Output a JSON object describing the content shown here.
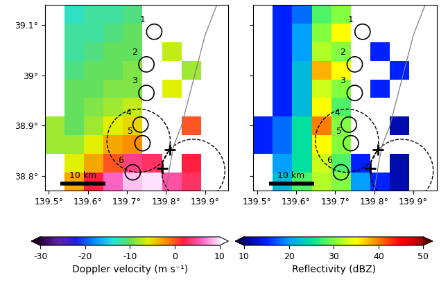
{
  "chart_data": [
    {
      "type": "heatmap",
      "xlim": [
        139.49,
        139.96
      ],
      "ylim": [
        38.77,
        39.14
      ],
      "xticks": [
        {
          "value": 139.5,
          "label": "139.5°"
        },
        {
          "value": 139.6,
          "label": "139.6°"
        },
        {
          "value": 139.7,
          "label": "139.7°"
        },
        {
          "value": 139.8,
          "label": "139.8°"
        },
        {
          "value": 139.9,
          "label": "139.9°"
        }
      ],
      "yticks": [
        {
          "value": 38.8,
          "label": "38.8°"
        },
        {
          "value": 38.9,
          "label": "38.9°"
        },
        {
          "value": 39.0,
          "label": "39°"
        },
        {
          "value": 39.1,
          "label": "39.1°"
        }
      ],
      "cells": {
        "x_edges": [
          139.49,
          139.54,
          139.59,
          139.64,
          139.69,
          139.74,
          139.79,
          139.84,
          139.89,
          139.96
        ],
        "y_edges": [
          38.77,
          38.807,
          38.844,
          38.881,
          38.918,
          38.955,
          38.992,
          39.029,
          39.066,
          39.103,
          39.14
        ],
        "values": [
          [
            null,
            -3,
            2,
            6,
            9,
            10,
            5,
            3,
            null
          ],
          [
            null,
            -6,
            -3,
            0,
            4,
            3,
            null,
            2,
            null
          ],
          [
            -8,
            -8,
            -6,
            -3,
            -2,
            null,
            null,
            null,
            null
          ],
          [
            -8,
            -10,
            -8,
            -6,
            -5,
            null,
            null,
            0,
            null
          ],
          [
            null,
            -10,
            -9,
            -8,
            -7,
            null,
            null,
            null,
            null
          ],
          [
            null,
            -10,
            -10,
            -9,
            -9,
            null,
            -6,
            null,
            null
          ],
          [
            null,
            -11,
            -10,
            -10,
            -9,
            null,
            null,
            -8,
            null
          ],
          [
            null,
            -12,
            -11,
            -10,
            -10,
            null,
            -7,
            null,
            null
          ],
          [
            null,
            -12,
            -12,
            -11,
            -10,
            null,
            null,
            null,
            null
          ],
          [
            null,
            -13,
            -12,
            -12,
            -11,
            null,
            null,
            null,
            null
          ]
        ]
      },
      "colorbar": {
        "label": "Doppler velocity (m s⁻¹)",
        "range": [
          -30,
          10
        ],
        "ticks": [
          -30,
          -20,
          -10,
          0,
          10
        ]
      },
      "circles": [
        {
          "label": "1",
          "lon": 139.77,
          "lat": 39.087
        },
        {
          "label": "2",
          "lon": 139.75,
          "lat": 39.022
        },
        {
          "label": "3",
          "lon": 139.75,
          "lat": 38.965
        },
        {
          "label": "4",
          "lon": 139.735,
          "lat": 38.902
        },
        {
          "label": "5",
          "lon": 139.74,
          "lat": 38.865
        },
        {
          "label": "6",
          "lon": 139.715,
          "lat": 38.807
        }
      ],
      "circle_radius_km": 1.7,
      "dashed_circles": [
        {
          "lon": 139.73,
          "lat": 38.87,
          "radius_km": 7
        },
        {
          "lon": 139.87,
          "lat": 38.81,
          "radius_km": 7
        }
      ],
      "crosses": [
        [
          139.81,
          38.852
        ],
        [
          139.79,
          38.815
        ]
      ],
      "scale_bar": {
        "label": "10 km",
        "length_km": 10,
        "lon": 139.53,
        "lat": 38.785
      },
      "coastline": [
        [
          139.93,
          39.14
        ],
        [
          139.9,
          39.08
        ],
        [
          139.88,
          39.02
        ],
        [
          139.86,
          38.96
        ],
        [
          139.84,
          38.9
        ],
        [
          139.82,
          38.86
        ],
        [
          139.81,
          38.82
        ],
        [
          139.8,
          38.77
        ]
      ]
    },
    {
      "type": "heatmap",
      "xlim": [
        139.49,
        139.96
      ],
      "ylim": [
        38.77,
        39.14
      ],
      "xticks": [
        {
          "value": 139.5,
          "label": "139.5°"
        },
        {
          "value": 139.6,
          "label": "139.6°"
        },
        {
          "value": 139.7,
          "label": "139.7°"
        },
        {
          "value": 139.8,
          "label": "139.8°"
        },
        {
          "value": 139.9,
          "label": "139.9°"
        }
      ],
      "yticks": [
        {
          "value": 38.8,
          "label": "38.8°"
        },
        {
          "value": 38.9,
          "label": "38.9°"
        },
        {
          "value": 39.0,
          "label": "39°"
        },
        {
          "value": 39.1,
          "label": "39.1°"
        }
      ],
      "tick_labels": "x",
      "cells": {
        "x_edges": [
          139.49,
          139.54,
          139.59,
          139.64,
          139.69,
          139.74,
          139.79,
          139.84,
          139.89,
          139.96
        ],
        "y_edges": [
          38.77,
          38.807,
          38.844,
          38.881,
          38.918,
          38.955,
          38.992,
          39.029,
          39.066,
          39.103,
          39.14
        ],
        "values": [
          [
            null,
            22,
            28,
            32,
            30,
            20,
            15,
            12,
            null
          ],
          [
            null,
            20,
            25,
            33,
            28,
            15,
            null,
            12,
            null
          ],
          [
            15,
            18,
            25,
            35,
            30,
            null,
            null,
            null,
            null
          ],
          [
            15,
            18,
            25,
            40,
            30,
            null,
            null,
            12,
            null
          ],
          [
            null,
            15,
            22,
            35,
            28,
            null,
            null,
            null,
            null
          ],
          [
            null,
            15,
            22,
            33,
            30,
            null,
            15,
            null,
            null
          ],
          [
            null,
            15,
            22,
            38,
            35,
            null,
            null,
            15,
            null
          ],
          [
            null,
            15,
            20,
            32,
            30,
            null,
            15,
            null,
            null
          ],
          [
            null,
            15,
            20,
            30,
            35,
            null,
            null,
            null,
            null
          ],
          [
            null,
            15,
            18,
            28,
            30,
            null,
            null,
            null,
            null
          ]
        ]
      },
      "colorbar": {
        "label": "Reflectivity (dBZ)",
        "range": [
          10,
          50
        ],
        "ticks": [
          10,
          20,
          30,
          40,
          50
        ]
      },
      "circles": [
        {
          "label": "1",
          "lon": 139.77,
          "lat": 39.087
        },
        {
          "label": "2",
          "lon": 139.75,
          "lat": 39.022
        },
        {
          "label": "3",
          "lon": 139.75,
          "lat": 38.965
        },
        {
          "label": "4",
          "lon": 139.735,
          "lat": 38.902
        },
        {
          "label": "5",
          "lon": 139.74,
          "lat": 38.865
        },
        {
          "label": "6",
          "lon": 139.715,
          "lat": 38.807
        }
      ],
      "circle_radius_km": 1.7,
      "dashed_circles": [
        {
          "lon": 139.73,
          "lat": 38.87,
          "radius_km": 7
        },
        {
          "lon": 139.87,
          "lat": 38.81,
          "radius_km": 7
        }
      ],
      "crosses": [
        [
          139.81,
          38.852
        ],
        [
          139.79,
          38.815
        ]
      ],
      "scale_bar": {
        "label": "10 km",
        "length_km": 10,
        "lon": 139.53,
        "lat": 38.785
      },
      "coastline": [
        [
          139.93,
          39.14
        ],
        [
          139.9,
          39.08
        ],
        [
          139.88,
          39.02
        ],
        [
          139.86,
          38.96
        ],
        [
          139.84,
          38.9
        ],
        [
          139.82,
          38.86
        ],
        [
          139.81,
          38.82
        ],
        [
          139.8,
          38.77
        ]
      ]
    }
  ]
}
